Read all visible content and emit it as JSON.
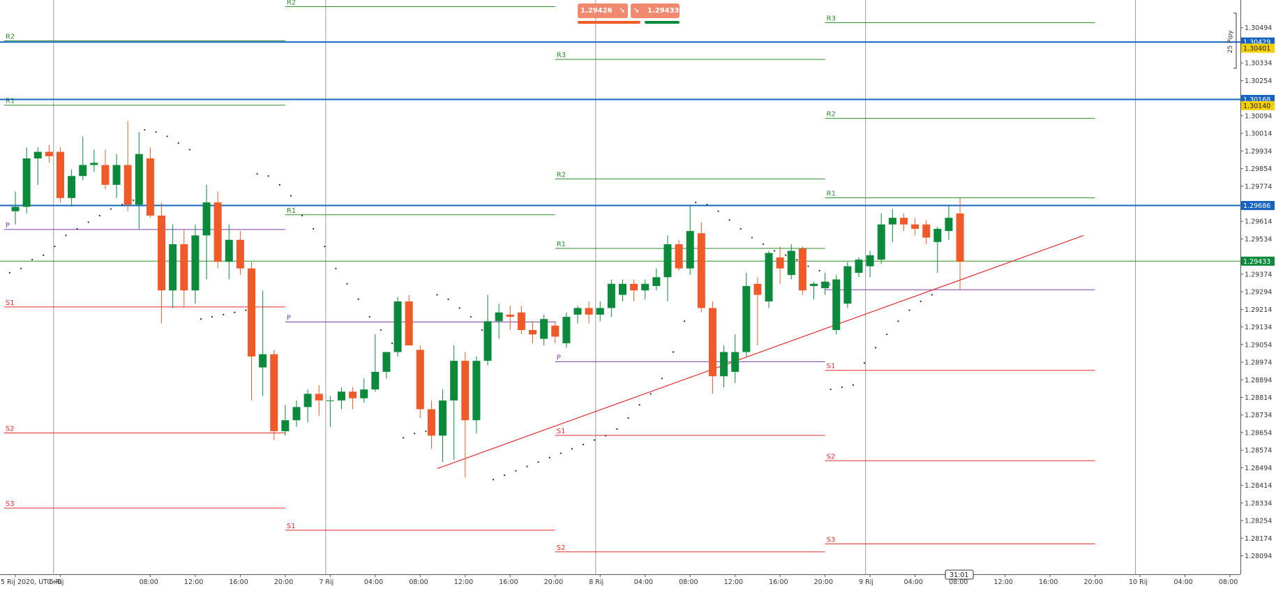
{
  "trade_panel": {
    "sell_price": "1.29426",
    "buy_price": "1.29433",
    "sell_icon": "arrow-down-right-icon",
    "buy_icon": "arrow-down-right-icon"
  },
  "colors": {
    "bull": "#0a8a3a",
    "bear": "#f05a28",
    "resistance": "#2b8a2b",
    "support": "#e02b2b",
    "pivot": "#7a3aa8",
    "level": "#1565c0",
    "price_tag": "#0a8a3a",
    "alert_tag": "#f5d000",
    "trendline": "#e02b2b"
  },
  "chart_data": {
    "type": "candlestick",
    "ylim": [
      1.2801,
      1.3062
    ],
    "y_ticks": [
      "1.30494",
      "1.30334",
      "1.30254",
      "1.30094",
      "1.30014",
      "1.29934",
      "1.29854",
      "1.29774",
      "1.29614",
      "1.29534",
      "1.29374",
      "1.29294",
      "1.29214",
      "1.29134",
      "1.29054",
      "1.28974",
      "1.28894",
      "1.28814",
      "1.28734",
      "1.28654",
      "1.28574",
      "1.28494",
      "1.28414",
      "1.28334",
      "1.28254",
      "1.28174",
      "1.28094"
    ],
    "time_axis": [
      {
        "label": "5 Rij 2020, UTC+0",
        "t": 0
      },
      {
        "label": "6 Rij",
        "t": 4
      },
      {
        "label": "08:00",
        "t": 12
      },
      {
        "label": "12:00",
        "t": 16
      },
      {
        "label": "16:00",
        "t": 20
      },
      {
        "label": "20:00",
        "t": 24
      },
      {
        "label": "7 Rij",
        "t": 28
      },
      {
        "label": "04:00",
        "t": 32
      },
      {
        "label": "08:00",
        "t": 36
      },
      {
        "label": "12:00",
        "t": 40
      },
      {
        "label": "16:00",
        "t": 44
      },
      {
        "label": "20:00",
        "t": 48
      },
      {
        "label": "8 Rij",
        "t": 52
      },
      {
        "label": "04:00",
        "t": 56
      },
      {
        "label": "08:00",
        "t": 60
      },
      {
        "label": "12:00",
        "t": 64
      },
      {
        "label": "16:00",
        "t": 68
      },
      {
        "label": "20:00",
        "t": 72
      },
      {
        "label": "9 Rij",
        "t": 76
      },
      {
        "label": "04:00",
        "t": 80
      },
      {
        "label": "08:00",
        "t": 84
      },
      {
        "label": "12:00",
        "t": 88
      },
      {
        "label": "16:00",
        "t": 92
      },
      {
        "label": "20:00",
        "t": 96
      },
      {
        "label": "10 Rij",
        "t": 100
      },
      {
        "label": "04:00",
        "t": 104
      },
      {
        "label": "08:00",
        "t": 108
      }
    ],
    "day_separators": [
      3.4,
      27.6,
      51.6,
      75.6,
      99.6
    ],
    "candles": [
      {
        "t": 0,
        "o": 1.2966,
        "h": 1.2975,
        "l": 1.296,
        "c": 1.2968
      },
      {
        "t": 1,
        "o": 1.2968,
        "h": 1.2995,
        "l": 1.2965,
        "c": 1.299
      },
      {
        "t": 2,
        "o": 1.299,
        "h": 1.2995,
        "l": 1.2978,
        "c": 1.2993
      },
      {
        "t": 3,
        "o": 1.2993,
        "h": 1.2996,
        "l": 1.2988,
        "c": 1.2991
      },
      {
        "t": 4,
        "o": 1.2993,
        "h": 1.2995,
        "l": 1.297,
        "c": 1.2972
      },
      {
        "t": 5,
        "o": 1.2972,
        "h": 1.2985,
        "l": 1.2968,
        "c": 1.2982
      },
      {
        "t": 6,
        "o": 1.2982,
        "h": 1.3,
        "l": 1.298,
        "c": 1.2987
      },
      {
        "t": 7,
        "o": 1.2987,
        "h": 1.2994,
        "l": 1.2984,
        "c": 1.2988
      },
      {
        "t": 8,
        "o": 1.2987,
        "h": 1.2994,
        "l": 1.2976,
        "c": 1.2978
      },
      {
        "t": 9,
        "o": 1.2978,
        "h": 1.2992,
        "l": 1.2972,
        "c": 1.2987
      },
      {
        "t": 10,
        "o": 1.2987,
        "h": 1.3007,
        "l": 1.2966,
        "c": 1.2969
      },
      {
        "t": 11,
        "o": 1.2969,
        "h": 1.3002,
        "l": 1.2958,
        "c": 1.2992
      },
      {
        "t": 12,
        "o": 1.299,
        "h": 1.2995,
        "l": 1.2963,
        "c": 1.2964
      },
      {
        "t": 13,
        "o": 1.2964,
        "h": 1.297,
        "l": 1.2915,
        "c": 1.293
      },
      {
        "t": 14,
        "o": 1.293,
        "h": 1.296,
        "l": 1.2922,
        "c": 1.2951
      },
      {
        "t": 15,
        "o": 1.2951,
        "h": 1.2958,
        "l": 1.2922,
        "c": 1.293
      },
      {
        "t": 16,
        "o": 1.293,
        "h": 1.296,
        "l": 1.2924,
        "c": 1.2955
      },
      {
        "t": 17,
        "o": 1.2955,
        "h": 1.2978,
        "l": 1.2935,
        "c": 1.297
      },
      {
        "t": 18,
        "o": 1.297,
        "h": 1.2975,
        "l": 1.294,
        "c": 1.2943
      },
      {
        "t": 19,
        "o": 1.2943,
        "h": 1.296,
        "l": 1.2935,
        "c": 1.2953
      },
      {
        "t": 20,
        "o": 1.2953,
        "h": 1.2957,
        "l": 1.2937,
        "c": 1.294
      },
      {
        "t": 21,
        "o": 1.294,
        "h": 1.2943,
        "l": 1.288,
        "c": 1.29
      },
      {
        "t": 22,
        "o": 1.2895,
        "h": 1.293,
        "l": 1.2882,
        "c": 1.2901
      },
      {
        "t": 23,
        "o": 1.2901,
        "h": 1.2903,
        "l": 1.2862,
        "c": 1.2866
      },
      {
        "t": 24,
        "o": 1.2866,
        "h": 1.2878,
        "l": 1.2864,
        "c": 1.2871
      },
      {
        "t": 25,
        "o": 1.2871,
        "h": 1.288,
        "l": 1.2868,
        "c": 1.2877
      },
      {
        "t": 26,
        "o": 1.2877,
        "h": 1.2885,
        "l": 1.287,
        "c": 1.2883
      },
      {
        "t": 27,
        "o": 1.2883,
        "h": 1.2887,
        "l": 1.2873,
        "c": 1.288
      },
      {
        "t": 28,
        "o": 1.288,
        "h": 1.2882,
        "l": 1.2868,
        "c": 1.288
      },
      {
        "t": 29,
        "o": 1.288,
        "h": 1.2886,
        "l": 1.2876,
        "c": 1.2884
      },
      {
        "t": 30,
        "o": 1.2884,
        "h": 1.2886,
        "l": 1.2876,
        "c": 1.2881
      },
      {
        "t": 31,
        "o": 1.2881,
        "h": 1.289,
        "l": 1.2879,
        "c": 1.2885
      },
      {
        "t": 32,
        "o": 1.2885,
        "h": 1.291,
        "l": 1.2884,
        "c": 1.2893
      },
      {
        "t": 33,
        "o": 1.2893,
        "h": 1.2902,
        "l": 1.289,
        "c": 1.2902
      },
      {
        "t": 34,
        "o": 1.2902,
        "h": 1.2927,
        "l": 1.29,
        "c": 1.2925
      },
      {
        "t": 35,
        "o": 1.2925,
        "h": 1.2928,
        "l": 1.2905,
        "c": 1.2905
      },
      {
        "t": 36,
        "o": 1.2903,
        "h": 1.2905,
        "l": 1.2872,
        "c": 1.2876
      },
      {
        "t": 37,
        "o": 1.2876,
        "h": 1.288,
        "l": 1.2858,
        "c": 1.2864
      },
      {
        "t": 38,
        "o": 1.2864,
        "h": 1.2885,
        "l": 1.2852,
        "c": 1.288
      },
      {
        "t": 39,
        "o": 1.288,
        "h": 1.2905,
        "l": 1.2853,
        "c": 1.2898
      },
      {
        "t": 40,
        "o": 1.2898,
        "h": 1.2902,
        "l": 1.2845,
        "c": 1.2871
      },
      {
        "t": 41,
        "o": 1.2871,
        "h": 1.29,
        "l": 1.2865,
        "c": 1.2898
      },
      {
        "t": 42,
        "o": 1.2898,
        "h": 1.2928,
        "l": 1.2896,
        "c": 1.2916
      },
      {
        "t": 43,
        "o": 1.2916,
        "h": 1.2924,
        "l": 1.2908,
        "c": 1.292
      },
      {
        "t": 44,
        "o": 1.2919,
        "h": 1.2923,
        "l": 1.2912,
        "c": 1.2918
      },
      {
        "t": 45,
        "o": 1.292,
        "h": 1.2923,
        "l": 1.291,
        "c": 1.2912
      },
      {
        "t": 46,
        "o": 1.2912,
        "h": 1.2916,
        "l": 1.2906,
        "c": 1.291
      },
      {
        "t": 47,
        "o": 1.2908,
        "h": 1.2919,
        "l": 1.2905,
        "c": 1.2917
      },
      {
        "t": 48,
        "o": 1.2914,
        "h": 1.2916,
        "l": 1.2906,
        "c": 1.2909
      },
      {
        "t": 49,
        "o": 1.2906,
        "h": 1.292,
        "l": 1.2904,
        "c": 1.2918
      },
      {
        "t": 50,
        "o": 1.2919,
        "h": 1.2923,
        "l": 1.2915,
        "c": 1.2922
      },
      {
        "t": 51,
        "o": 1.2922,
        "h": 1.2925,
        "l": 1.2915,
        "c": 1.2919
      },
      {
        "t": 52,
        "o": 1.2919,
        "h": 1.2925,
        "l": 1.2916,
        "c": 1.2922
      },
      {
        "t": 53,
        "o": 1.2922,
        "h": 1.2935,
        "l": 1.2918,
        "c": 1.2933
      },
      {
        "t": 54,
        "o": 1.2928,
        "h": 1.2935,
        "l": 1.2925,
        "c": 1.2933
      },
      {
        "t": 55,
        "o": 1.2933,
        "h": 1.2935,
        "l": 1.2925,
        "c": 1.293
      },
      {
        "t": 56,
        "o": 1.293,
        "h": 1.2935,
        "l": 1.2926,
        "c": 1.2933
      },
      {
        "t": 57,
        "o": 1.2932,
        "h": 1.294,
        "l": 1.293,
        "c": 1.2936
      },
      {
        "t": 58,
        "o": 1.2936,
        "h": 1.2955,
        "l": 1.2925,
        "c": 1.2951
      },
      {
        "t": 59,
        "o": 1.2951,
        "h": 1.2953,
        "l": 1.2939,
        "c": 1.294
      },
      {
        "t": 60,
        "o": 1.294,
        "h": 1.2969,
        "l": 1.2937,
        "c": 1.2957
      },
      {
        "t": 61,
        "o": 1.2956,
        "h": 1.2961,
        "l": 1.292,
        "c": 1.2922
      },
      {
        "t": 62,
        "o": 1.2922,
        "h": 1.2925,
        "l": 1.2883,
        "c": 1.2891
      },
      {
        "t": 63,
        "o": 1.2891,
        "h": 1.2905,
        "l": 1.2886,
        "c": 1.2902
      },
      {
        "t": 64,
        "o": 1.2893,
        "h": 1.291,
        "l": 1.2888,
        "c": 1.2902
      },
      {
        "t": 65,
        "o": 1.2902,
        "h": 1.2938,
        "l": 1.29,
        "c": 1.2932
      },
      {
        "t": 66,
        "o": 1.2933,
        "h": 1.2936,
        "l": 1.2905,
        "c": 1.2928
      },
      {
        "t": 67,
        "o": 1.2925,
        "h": 1.2948,
        "l": 1.2922,
        "c": 1.2947
      },
      {
        "t": 68,
        "o": 1.2945,
        "h": 1.295,
        "l": 1.2933,
        "c": 1.294
      },
      {
        "t": 69,
        "o": 1.2937,
        "h": 1.2951,
        "l": 1.2935,
        "c": 1.2948
      },
      {
        "t": 70,
        "o": 1.2949,
        "h": 1.295,
        "l": 1.2928,
        "c": 1.293
      },
      {
        "t": 71,
        "o": 1.2932,
        "h": 1.2934,
        "l": 1.2926,
        "c": 1.2933
      },
      {
        "t": 72,
        "o": 1.2931,
        "h": 1.2938,
        "l": 1.2928,
        "c": 1.2934
      },
      {
        "t": 73,
        "o": 1.2912,
        "h": 1.2937,
        "l": 1.291,
        "c": 1.2935
      },
      {
        "t": 74,
        "o": 1.2924,
        "h": 1.2943,
        "l": 1.2922,
        "c": 1.2941
      },
      {
        "t": 75,
        "o": 1.2938,
        "h": 1.2945,
        "l": 1.2936,
        "c": 1.2944
      },
      {
        "t": 76,
        "o": 1.2941,
        "h": 1.2948,
        "l": 1.2936,
        "c": 1.2946
      },
      {
        "t": 77,
        "o": 1.2944,
        "h": 1.2965,
        "l": 1.2942,
        "c": 1.296
      },
      {
        "t": 78,
        "o": 1.296,
        "h": 1.2967,
        "l": 1.2952,
        "c": 1.2963
      },
      {
        "t": 79,
        "o": 1.2963,
        "h": 1.2965,
        "l": 1.2957,
        "c": 1.296
      },
      {
        "t": 80,
        "o": 1.296,
        "h": 1.2963,
        "l": 1.2955,
        "c": 1.2958
      },
      {
        "t": 81,
        "o": 1.296,
        "h": 1.2962,
        "l": 1.2951,
        "c": 1.2954
      },
      {
        "t": 82,
        "o": 1.2952,
        "h": 1.2959,
        "l": 1.2938,
        "c": 1.2958
      },
      {
        "t": 83,
        "o": 1.2957,
        "h": 1.2969,
        "l": 1.2953,
        "c": 1.2963
      },
      {
        "t": 84,
        "o": 1.2965,
        "h": 1.2972,
        "l": 1.293,
        "c": 1.2943
      }
    ],
    "parabolic_sar": [
      [
        -0.5,
        1.2938
      ],
      [
        0.5,
        1.294
      ],
      [
        1.5,
        1.2944
      ],
      [
        2.5,
        1.2946
      ],
      [
        3.5,
        1.295
      ],
      [
        4.5,
        1.2955
      ],
      [
        5.5,
        1.2958
      ],
      [
        6.5,
        1.2961
      ],
      [
        7.5,
        1.2964
      ],
      [
        8.5,
        1.2967
      ],
      [
        9.5,
        1.2969
      ],
      [
        10.5,
        1.2971
      ],
      [
        11.5,
        1.3003
      ],
      [
        12.5,
        1.3002
      ],
      [
        13.5,
        1.3
      ],
      [
        14.5,
        1.2997
      ],
      [
        15.5,
        1.2994
      ],
      [
        16.5,
        1.2917
      ],
      [
        17.5,
        1.2918
      ],
      [
        18.5,
        1.2919
      ],
      [
        19.5,
        1.292
      ],
      [
        20.5,
        1.2921
      ],
      [
        21.5,
        1.2983
      ],
      [
        22.5,
        1.2982
      ],
      [
        23.5,
        1.2978
      ],
      [
        24.5,
        1.2973
      ],
      [
        25.5,
        1.2964
      ],
      [
        26.5,
        1.2958
      ],
      [
        27.5,
        1.295
      ],
      [
        28.5,
        1.294
      ],
      [
        29.5,
        1.2933
      ],
      [
        30.5,
        1.2926
      ],
      [
        31.5,
        1.2918
      ],
      [
        32.5,
        1.2912
      ],
      [
        33.5,
        1.2906
      ],
      [
        34.5,
        1.2863
      ],
      [
        35.5,
        1.2865
      ],
      [
        36.5,
        1.2866
      ],
      [
        37.5,
        1.2928
      ],
      [
        38.5,
        1.2926
      ],
      [
        39.5,
        1.2922
      ],
      [
        40.5,
        1.2918
      ],
      [
        41.5,
        1.2912
      ],
      [
        42.5,
        1.2844
      ],
      [
        43.5,
        1.2846
      ],
      [
        44.5,
        1.2848
      ],
      [
        45.5,
        1.285
      ],
      [
        46.5,
        1.2852
      ],
      [
        47.5,
        1.2854
      ],
      [
        48.5,
        1.2856
      ],
      [
        49.5,
        1.2858
      ],
      [
        50.5,
        1.286
      ],
      [
        51.5,
        1.2862
      ],
      [
        52.5,
        1.2864
      ],
      [
        53.5,
        1.2867
      ],
      [
        54.5,
        1.2872
      ],
      [
        55.5,
        1.2878
      ],
      [
        56.5,
        1.2883
      ],
      [
        57.5,
        1.289
      ],
      [
        58.5,
        1.2902
      ],
      [
        59.5,
        1.2916
      ],
      [
        60.5,
        1.297
      ],
      [
        61.5,
        1.2969
      ],
      [
        62.5,
        1.2966
      ],
      [
        63.5,
        1.2962
      ],
      [
        64.5,
        1.2958
      ],
      [
        65.5,
        1.2954
      ],
      [
        66.5,
        1.2951
      ],
      [
        67.5,
        1.2948
      ],
      [
        68.5,
        1.2946
      ],
      [
        69.5,
        1.2944
      ],
      [
        70.5,
        1.2941
      ],
      [
        71.5,
        1.2939
      ],
      [
        72.5,
        1.2885
      ],
      [
        73.5,
        1.2886
      ],
      [
        74.5,
        1.2887
      ],
      [
        75.5,
        1.2897
      ],
      [
        76.5,
        1.2904
      ],
      [
        77.5,
        1.291
      ],
      [
        78.5,
        1.2916
      ],
      [
        79.5,
        1.2921
      ],
      [
        80.5,
        1.2925
      ],
      [
        81.5,
        1.2928
      ]
    ],
    "pivot_levels": [
      {
        "label": "R2",
        "t1": -1,
        "t2": 24,
        "y": 1.30435,
        "kind": "r"
      },
      {
        "label": "R1",
        "t1": -1,
        "t2": 24,
        "y": 1.30142,
        "kind": "r"
      },
      {
        "label": "P",
        "t1": -1,
        "t2": 24,
        "y": 1.29577,
        "kind": "p"
      },
      {
        "label": "S1",
        "t1": -1,
        "t2": 24,
        "y": 1.29225,
        "kind": "s"
      },
      {
        "label": "S2",
        "t1": -1,
        "t2": 24,
        "y": 1.28652,
        "kind": "s"
      },
      {
        "label": "S3",
        "t1": -1,
        "t2": 24,
        "y": 1.28311,
        "kind": "s"
      },
      {
        "label": "R2",
        "t1": 24,
        "t2": 48,
        "y": 1.3059,
        "kind": "r"
      },
      {
        "label": "R1",
        "t1": 24,
        "t2": 48,
        "y": 1.29644,
        "kind": "r"
      },
      {
        "label": "P",
        "t1": 24,
        "t2": 48,
        "y": 1.29157,
        "kind": "p"
      },
      {
        "label": "S1",
        "t1": 24,
        "t2": 48,
        "y": 1.2821,
        "kind": "s"
      },
      {
        "label": "R3",
        "t1": 48,
        "t2": 72,
        "y": 1.3035,
        "kind": "r"
      },
      {
        "label": "R2",
        "t1": 48,
        "t2": 72,
        "y": 1.29807,
        "kind": "r"
      },
      {
        "label": "R1",
        "t1": 48,
        "t2": 72,
        "y": 1.29491,
        "kind": "r"
      },
      {
        "label": "P",
        "t1": 48,
        "t2": 72,
        "y": 1.28976,
        "kind": "p"
      },
      {
        "label": "S1",
        "t1": 48,
        "t2": 72,
        "y": 1.28641,
        "kind": "s"
      },
      {
        "label": "S2",
        "t1": 48,
        "t2": 72,
        "y": 1.28112,
        "kind": "s"
      },
      {
        "label": "R3",
        "t1": 72,
        "t2": 96,
        "y": 1.30517,
        "kind": "r"
      },
      {
        "label": "R2",
        "t1": 72,
        "t2": 96,
        "y": 1.30082,
        "kind": "r"
      },
      {
        "label": "R1",
        "t1": 72,
        "t2": 96,
        "y": 1.29721,
        "kind": "r"
      },
      {
        "label": "P",
        "t1": 72,
        "t2": 96,
        "y": 1.29303,
        "kind": "p"
      },
      {
        "label": "S1",
        "t1": 72,
        "t2": 96,
        "y": 1.28937,
        "kind": "s"
      },
      {
        "label": "S2",
        "t1": 72,
        "t2": 96,
        "y": 1.28526,
        "kind": "s"
      },
      {
        "label": "S3",
        "t1": 72,
        "t2": 96,
        "y": 1.28148,
        "kind": "s"
      }
    ],
    "horizontal_levels": [
      {
        "price": "1.30429",
        "y": 1.30429
      },
      {
        "price": "1.30168",
        "y": 1.30168
      },
      {
        "price": "1.29686",
        "y": 1.29686
      }
    ],
    "alert_tags": [
      {
        "price": "1.30401",
        "y": 1.30401
      },
      {
        "price": "1.30140",
        "y": 1.3014
      }
    ],
    "current_price": {
      "price": "1.29433",
      "y": 1.29433
    },
    "trendline": [
      [
        37.5,
        1.2849
      ],
      [
        95,
        1.2955
      ]
    ],
    "pip_bracket": {
      "label": "25 Pipy",
      "y1": 1.3056,
      "y2": 1.3031
    },
    "timer": "31:01"
  }
}
